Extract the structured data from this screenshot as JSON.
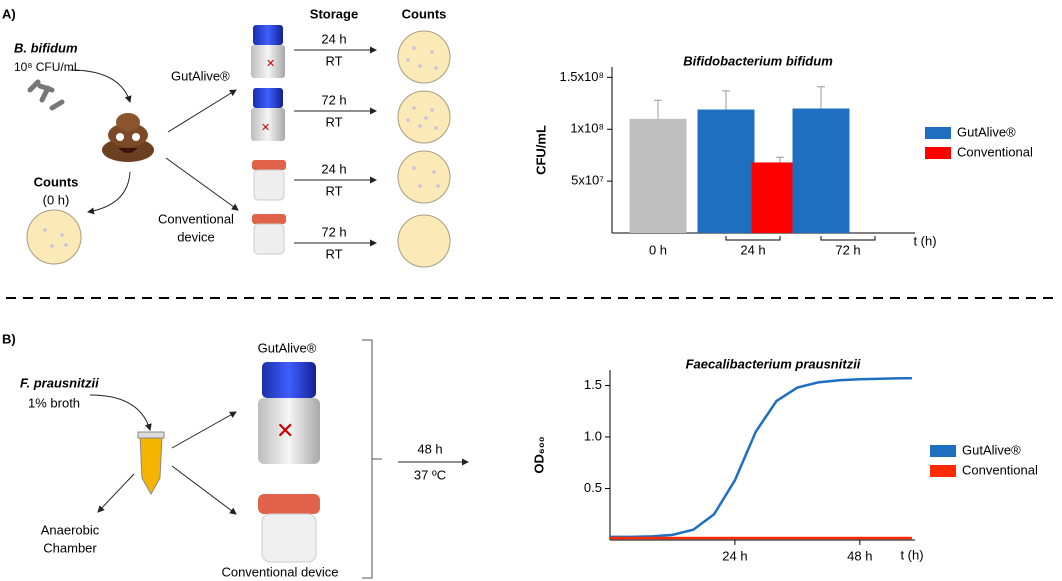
{
  "panel_a": {
    "label": "A)",
    "organism": "B. bifidum",
    "inoculum": "10⁸ CFU/mL",
    "storage_header": "Storage",
    "counts_header": "Counts",
    "gutalive_label": "GutAlive®",
    "conventional_label": [
      "Conventional",
      "device"
    ],
    "baseline_counts": "Counts",
    "baseline_time": "(0 h)",
    "conditions": [
      {
        "time": "24 h",
        "temp": "RT"
      },
      {
        "time": "72 h",
        "temp": "RT"
      },
      {
        "time": "24 h",
        "temp": "RT"
      },
      {
        "time": "72 h",
        "temp": "RT"
      }
    ]
  },
  "panel_b": {
    "label": "B)",
    "organism": "F. prausnitzii",
    "inoculum": "1% broth",
    "gutalive_label": "GutAlive®",
    "conventional_label": "Conventional device",
    "anaerobic_label": [
      "Anaerobic",
      "Chamber"
    ],
    "time": "48 h",
    "temp": "37 ºC"
  },
  "chart_data": [
    {
      "type": "bar",
      "title": "Bifidobacterium bifidum",
      "ylabel": "CFU/mL",
      "xlabel": "t (h)",
      "categories": [
        "0 h",
        "24 h",
        "72 h"
      ],
      "series": [
        {
          "color": "#bfbfbf",
          "values": [
            110000000,
            null,
            null
          ],
          "errors": [
            18000000,
            null,
            null
          ]
        },
        {
          "name": "GutAlive®",
          "color": "#1f6fc1",
          "values": [
            null,
            119000000,
            120000000
          ],
          "errors": [
            null,
            18000000,
            21000000
          ]
        },
        {
          "name": "Conventional",
          "color": "#ff0000",
          "values": [
            null,
            68000000,
            null
          ],
          "errors": [
            null,
            5000000,
            null
          ]
        }
      ],
      "ylim": [
        0,
        160000000
      ],
      "yticks": [
        {
          "value": 50000000,
          "label": "5x10⁷"
        },
        {
          "value": 100000000,
          "label": "1x10⁸"
        },
        {
          "value": 150000000,
          "label": "1.5x10⁸"
        }
      ]
    },
    {
      "type": "line",
      "title": "Faecalibacterium prausnitzii",
      "ylabel": "OD₆₀₀",
      "xlabel": "t (h)",
      "x": [
        0,
        4,
        8,
        12,
        16,
        20,
        24,
        28,
        32,
        36,
        40,
        44,
        48,
        52,
        56,
        58
      ],
      "series": [
        {
          "name": "GutAlive®",
          "color": "#1f6fc1",
          "values": [
            0.03,
            0.03,
            0.035,
            0.05,
            0.1,
            0.25,
            0.58,
            1.05,
            1.35,
            1.48,
            1.53,
            1.55,
            1.56,
            1.565,
            1.57,
            1.57
          ]
        },
        {
          "name": "Conventional",
          "color": "#ff2a00",
          "values": [
            0.02,
            0.02,
            0.02,
            0.02,
            0.02,
            0.02,
            0.02,
            0.02,
            0.02,
            0.02,
            0.02,
            0.02,
            0.02,
            0.02,
            0.02,
            0.02
          ]
        }
      ],
      "xlim": [
        0,
        58.6
      ],
      "ylim": [
        0,
        1.65
      ],
      "xticks": [
        {
          "value": 24,
          "label": "24 h"
        },
        {
          "value": 48,
          "label": "48 h"
        }
      ],
      "yticks": [
        0.5,
        {
          "value": 1,
          "label": "1.0"
        },
        1.5
      ]
    }
  ]
}
